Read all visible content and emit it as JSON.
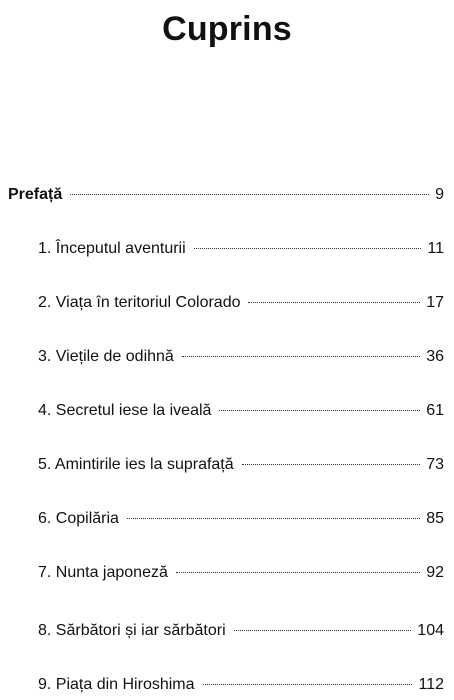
{
  "heading": "Cuprins",
  "preface": {
    "label": "Prefață",
    "page": "9"
  },
  "chapters": [
    {
      "label": "1. Începutul aventurii",
      "page": "11"
    },
    {
      "label": "2. Viața în teritoriul Colorado",
      "page": "17"
    },
    {
      "label": "3. Viețile de odihnă",
      "page": "36"
    },
    {
      "label": "4. Secretul iese la iveală",
      "page": "61"
    },
    {
      "label": "5. Amintirile ies la suprafață",
      "page": "73"
    },
    {
      "label": "6. Copilăria",
      "page": "85"
    },
    {
      "label": "7. Nunta japoneză",
      "page": "92"
    },
    {
      "label": "8. Sărbători și iar sărbători",
      "page": "104"
    },
    {
      "label": "9. Piața din Hiroshima",
      "page": "112"
    }
  ]
}
